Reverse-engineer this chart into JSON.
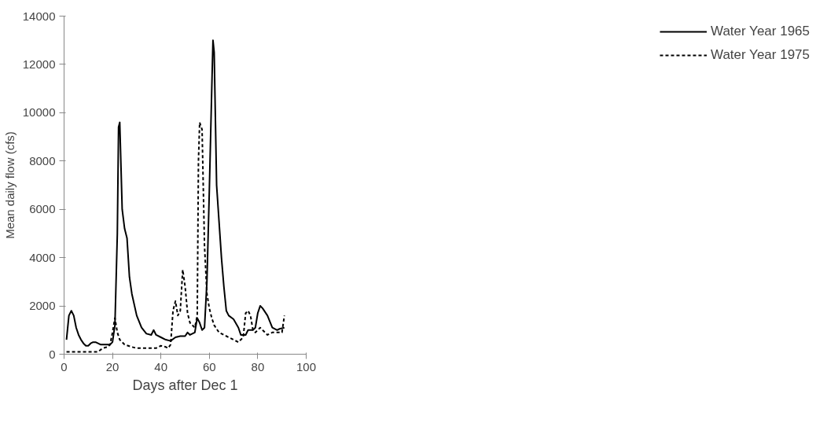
{
  "chart_data": {
    "type": "line",
    "xlabel": "Days after Dec 1",
    "ylabel": "Mean daily flow (cfs)",
    "xlim": [
      0,
      100
    ],
    "xticks": [
      0,
      20,
      40,
      60,
      80,
      100
    ],
    "ylim": [
      0,
      14000
    ],
    "yticks": [
      0,
      2000,
      4000,
      6000,
      8000,
      10000,
      12000,
      14000
    ],
    "grid": false,
    "legend": "right",
    "marker": "none",
    "series": [
      {
        "name": "Water Year 1965",
        "color": "#000000",
        "line_style": "solid",
        "x": [
          1,
          2,
          3,
          4,
          5,
          6,
          7,
          8,
          9,
          10,
          11,
          12,
          13,
          14,
          15,
          16,
          17,
          18,
          19,
          20,
          21,
          22,
          22.5,
          23,
          24,
          25,
          26,
          27,
          28,
          30,
          32,
          34,
          36,
          37,
          38,
          40,
          42,
          44,
          46,
          48,
          50,
          51,
          52,
          54,
          55,
          56,
          57,
          58,
          59,
          60,
          61,
          61.5,
          62,
          63,
          64,
          65,
          66,
          67,
          68,
          70,
          72,
          73,
          75,
          76,
          78,
          79,
          80,
          81,
          82,
          84,
          86,
          88,
          89,
          91
        ],
        "values": [
          600,
          1600,
          1800,
          1600,
          1100,
          800,
          600,
          450,
          350,
          350,
          450,
          500,
          500,
          450,
          400,
          400,
          400,
          400,
          400,
          500,
          1200,
          5000,
          9400,
          9600,
          6000,
          5200,
          4800,
          3200,
          2500,
          1600,
          1100,
          850,
          800,
          1000,
          800,
          700,
          600,
          550,
          700,
          750,
          750,
          900,
          800,
          900,
          1500,
          1300,
          1000,
          1100,
          3000,
          6800,
          11000,
          13000,
          12500,
          7000,
          5500,
          4000,
          2800,
          1800,
          1600,
          1450,
          1100,
          800,
          800,
          1000,
          1000,
          1100,
          1700,
          2000,
          1900,
          1600,
          1100,
          1000,
          1050,
          1100
        ]
      },
      {
        "name": "Water Year 1975",
        "color": "#000000",
        "line_style": "dashed",
        "x": [
          1,
          14,
          16,
          18,
          19,
          20,
          21,
          22,
          23,
          25,
          28,
          30,
          34,
          38,
          40,
          42,
          43,
          44,
          45,
          46,
          47,
          48,
          49,
          50,
          51,
          52,
          54,
          55,
          55.5,
          56,
          57,
          58,
          59,
          60,
          61,
          62,
          64,
          66,
          68,
          70,
          72,
          73,
          74,
          75,
          76,
          77,
          78,
          79,
          80,
          81,
          83,
          84,
          86,
          88,
          90,
          91
        ],
        "values": [
          100,
          100,
          250,
          300,
          400,
          900,
          1500,
          900,
          600,
          400,
          300,
          250,
          250,
          250,
          350,
          300,
          250,
          400,
          1800,
          2200,
          1600,
          1800,
          3500,
          2800,
          1700,
          1300,
          1100,
          1600,
          8000,
          9600,
          9300,
          4500,
          2500,
          1900,
          1500,
          1200,
          900,
          800,
          700,
          600,
          500,
          600,
          700,
          1700,
          1800,
          1600,
          1000,
          900,
          1000,
          1100,
          900,
          800,
          900,
          900,
          900,
          1600
        ]
      }
    ]
  }
}
